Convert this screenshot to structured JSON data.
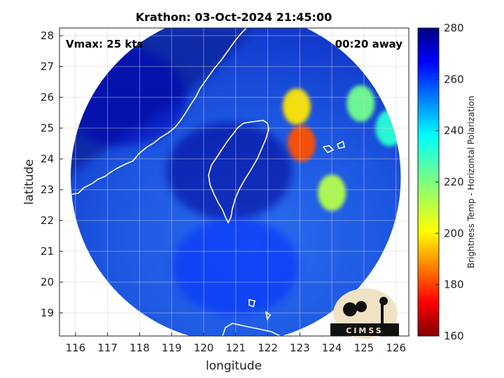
{
  "chart_data": {
    "type": "heatmap",
    "title": "Krathon: 03-Oct-2024 21:45:00",
    "xlabel": "longitude",
    "ylabel": "latitude",
    "xlim": [
      115.5,
      126.4
    ],
    "ylim": [
      18.25,
      28.25
    ],
    "xticks": [
      116,
      117,
      118,
      119,
      120,
      121,
      122,
      123,
      124,
      125,
      126
    ],
    "yticks": [
      19,
      20,
      21,
      22,
      23,
      24,
      25,
      26,
      27,
      28
    ],
    "annotations": {
      "vmax": "Vmax: 25 kts",
      "time_offset": "00:20 away"
    },
    "colorbar": {
      "label": "Brightness Temp - Horizontal Polarization",
      "range": [
        160,
        280
      ],
      "ticks": [
        160,
        180,
        200,
        220,
        240,
        260,
        280
      ],
      "colormap": "jet"
    },
    "swath": {
      "center": [
        121.0,
        23.4
      ],
      "radius_deg": 5.15
    },
    "regions": [
      {
        "lon": 122.9,
        "lat": 25.7,
        "tb": 198
      },
      {
        "lon": 123.05,
        "lat": 24.5,
        "tb": 182
      },
      {
        "lon": 124.0,
        "lat": 22.9,
        "tb": 212
      },
      {
        "lon": 124.9,
        "lat": 25.8,
        "tb": 222
      },
      {
        "lon": 125.8,
        "lat": 25.0,
        "tb": 232
      },
      {
        "lon": 117.5,
        "lat": 26.0,
        "tb": 275
      },
      {
        "lon": 120.8,
        "lat": 23.6,
        "tb": 278
      },
      {
        "lon": 121.0,
        "lat": 20.5,
        "tb": 262
      }
    ],
    "logo": "CIMSS"
  }
}
